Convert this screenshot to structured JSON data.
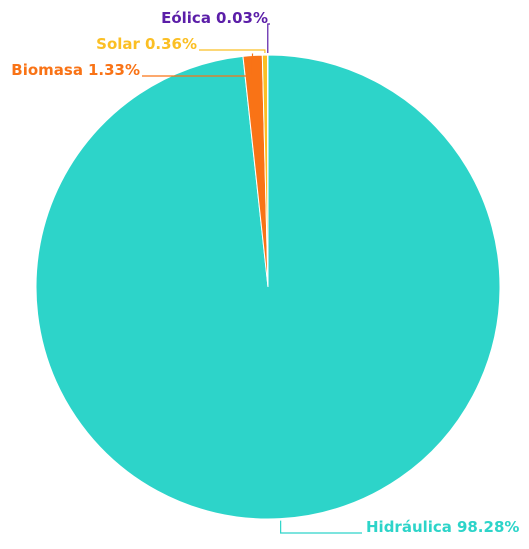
{
  "chart_data": {
    "type": "pie",
    "categories": [
      "Hidráulica",
      "Biomasa",
      "Solar",
      "Eólica"
    ],
    "values": [
      98.28,
      1.33,
      0.36,
      0.03
    ],
    "value_labels": [
      "98.28%",
      "1.33%",
      "0.36%",
      "0.03%"
    ],
    "colors": [
      "#2dd4c9",
      "#f97316",
      "#fbbf24",
      "#5b1ea8"
    ]
  }
}
